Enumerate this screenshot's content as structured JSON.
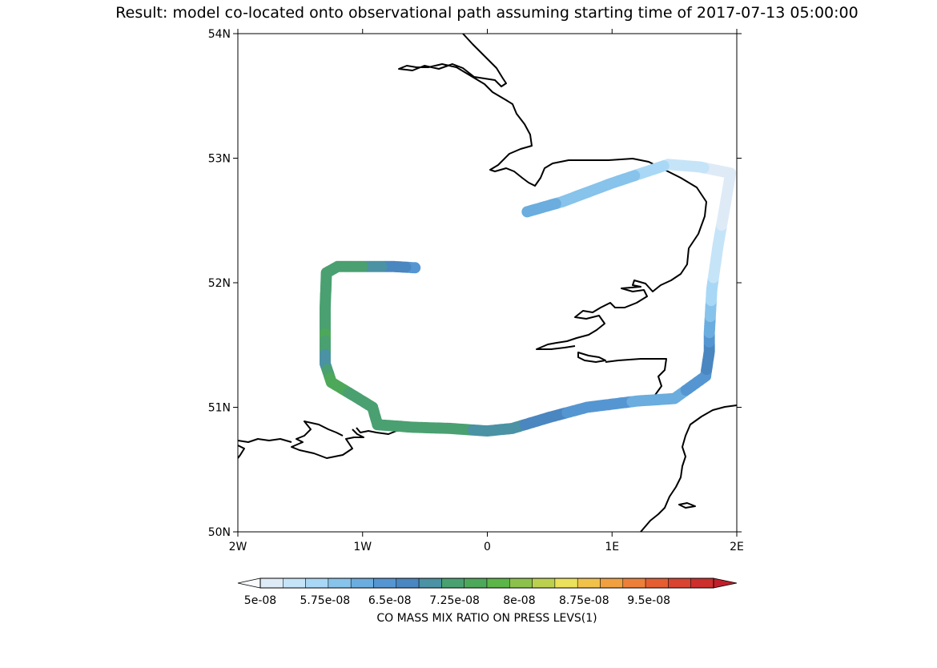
{
  "title": "Result: model co-located onto observational path assuming starting time of 2017-07-13 05:00:00",
  "map": {
    "lon_range": [
      -2,
      2
    ],
    "lat_range": [
      50,
      54
    ],
    "x_ticks": [
      {
        "value": -2,
        "label": "2W"
      },
      {
        "value": -1,
        "label": "1W"
      },
      {
        "value": 0,
        "label": "0"
      },
      {
        "value": 1,
        "label": "1E"
      },
      {
        "value": 2,
        "label": "2E"
      }
    ],
    "y_ticks": [
      {
        "value": 54,
        "label": "54N"
      },
      {
        "value": 53,
        "label": "53N"
      },
      {
        "value": 52,
        "label": "52N"
      },
      {
        "value": 51,
        "label": "51N"
      },
      {
        "value": 50,
        "label": "50N"
      }
    ],
    "coastline_color": "#000000"
  },
  "colorbar": {
    "label": "CO MASS MIX RATIO ON PRESS LEVS(1)",
    "range": [
      5e-08,
      1.025e-07
    ],
    "extend": "both",
    "colors": [
      "#f7fbff",
      "#deebf7",
      "#c6e4f8",
      "#a8d8f5",
      "#87c3eb",
      "#6aadde",
      "#5596d2",
      "#4a86c0",
      "#4a92a4",
      "#4aa070",
      "#4ea85a",
      "#5cb548",
      "#8cc24c",
      "#bcd050",
      "#ece15a",
      "#f1c24a",
      "#f0a040",
      "#ec803a",
      "#e45e32",
      "#d84430",
      "#cc2f2c",
      "#c01f2a"
    ],
    "ticks": [
      {
        "value": 5e-08,
        "label": "5e-08"
      },
      {
        "value": 5.75e-08,
        "label": "5.75e-08"
      },
      {
        "value": 6.5e-08,
        "label": "6.5e-08"
      },
      {
        "value": 7.25e-08,
        "label": "7.25e-08"
      },
      {
        "value": 8e-08,
        "label": "8e-08"
      },
      {
        "value": 8.75e-08,
        "label": "8.75e-08"
      },
      {
        "value": 9.5e-08,
        "label": "9.5e-08"
      }
    ]
  },
  "chart_data": {
    "type": "scatter",
    "title": "Result: model co-located onto observational path assuming starting time of 2017-07-13 05:00:00",
    "xlabel": "",
    "ylabel": "",
    "xlim": [
      -2,
      2
    ],
    "ylim": [
      50,
      54
    ],
    "colorbar_label": "CO MASS MIX RATIO ON PRESS LEVS(1)",
    "points": [
      {
        "lon": -0.58,
        "lat": 52.12,
        "value": 6.5e-08
      },
      {
        "lon": -0.75,
        "lat": 52.13,
        "value": 6.7e-08
      },
      {
        "lon": -1.0,
        "lat": 52.13,
        "value": 7.1e-08
      },
      {
        "lon": -1.2,
        "lat": 52.13,
        "value": 7.25e-08
      },
      {
        "lon": -1.29,
        "lat": 52.08,
        "value": 7.25e-08
      },
      {
        "lon": -1.3,
        "lat": 51.8,
        "value": 7.2e-08
      },
      {
        "lon": -1.3,
        "lat": 51.55,
        "value": 7.4e-08
      },
      {
        "lon": -1.3,
        "lat": 51.35,
        "value": 6.9e-08
      },
      {
        "lon": -1.25,
        "lat": 51.2,
        "value": 7.5e-08
      },
      {
        "lon": -1.05,
        "lat": 51.08,
        "value": 7.3e-08
      },
      {
        "lon": -0.92,
        "lat": 51.0,
        "value": 7.25e-08
      },
      {
        "lon": -0.88,
        "lat": 50.86,
        "value": 7.25e-08
      },
      {
        "lon": -0.6,
        "lat": 50.84,
        "value": 7.25e-08
      },
      {
        "lon": -0.3,
        "lat": 50.83,
        "value": 7.25e-08
      },
      {
        "lon": 0.0,
        "lat": 50.81,
        "value": 7e-08
      },
      {
        "lon": 0.2,
        "lat": 50.83,
        "value": 6.9e-08
      },
      {
        "lon": 0.5,
        "lat": 50.92,
        "value": 6.7e-08
      },
      {
        "lon": 0.8,
        "lat": 51.0,
        "value": 6.4e-08
      },
      {
        "lon": 1.2,
        "lat": 51.05,
        "value": 6.3e-08
      },
      {
        "lon": 1.5,
        "lat": 51.07,
        "value": 6.2e-08
      },
      {
        "lon": 1.75,
        "lat": 51.25,
        "value": 6.5e-08
      },
      {
        "lon": 1.78,
        "lat": 51.45,
        "value": 6.8e-08
      },
      {
        "lon": 1.78,
        "lat": 51.6,
        "value": 6.3e-08
      },
      {
        "lon": 1.8,
        "lat": 51.95,
        "value": 5.6e-08
      },
      {
        "lon": 1.85,
        "lat": 52.3,
        "value": 5.3e-08
      },
      {
        "lon": 1.92,
        "lat": 52.7,
        "value": 5.2e-08
      },
      {
        "lon": 1.95,
        "lat": 52.88,
        "value": 5.1e-08
      },
      {
        "lon": 1.7,
        "lat": 52.93,
        "value": 5.3e-08
      },
      {
        "lon": 1.45,
        "lat": 52.95,
        "value": 5.5e-08
      },
      {
        "lon": 1.0,
        "lat": 52.8,
        "value": 6e-08
      },
      {
        "lon": 0.6,
        "lat": 52.65,
        "value": 6e-08
      },
      {
        "lon": 0.32,
        "lat": 52.57,
        "value": 6.3e-08
      }
    ]
  }
}
